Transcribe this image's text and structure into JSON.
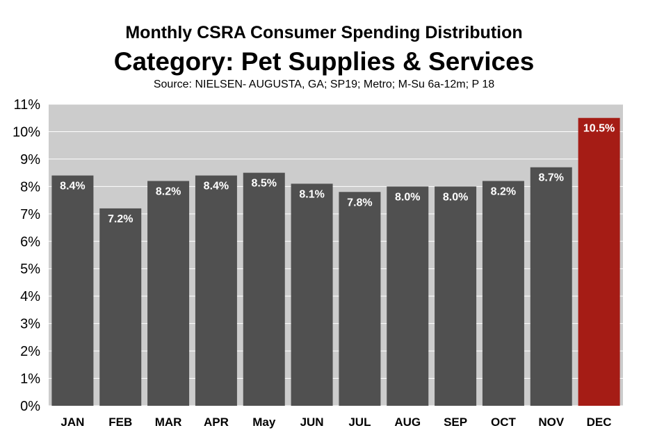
{
  "chart_data": {
    "type": "bar",
    "title": "Monthly CSRA Consumer Spending Distribution",
    "subtitle": "Category: Pet Supplies & Services",
    "source": "Source: NIELSEN-  AUGUSTA, GA; SP19; Metro; M-Su 6a-12m; P 18",
    "categories": [
      "JAN",
      "FEB",
      "MAR",
      "APR",
      "May",
      "JUN",
      "JUL",
      "AUG",
      "SEP",
      "OCT",
      "NOV",
      "DEC"
    ],
    "values": [
      8.4,
      7.2,
      8.2,
      8.4,
      8.5,
      8.1,
      7.8,
      8.0,
      8.0,
      8.2,
      8.7,
      10.5
    ],
    "data_labels": [
      "8.4%",
      "7.2%",
      "8.2%",
      "8.4%",
      "8.5%",
      "8.1%",
      "7.8%",
      "8.0%",
      "8.0%",
      "8.2%",
      "8.7%",
      "10.5%"
    ],
    "yticks": [
      "0%",
      "1%",
      "2%",
      "3%",
      "4%",
      "5%",
      "6%",
      "7%",
      "8%",
      "9%",
      "10%",
      "11%"
    ],
    "ylim": [
      0,
      11
    ],
    "grid": "horizontal",
    "legend": "none",
    "colors": {
      "bar": "#505050",
      "highlight": "#a51c15",
      "plot_background": "#cccccc",
      "grid": "#ffffff",
      "data_label": "#ffffff"
    },
    "highlight_category": "DEC"
  }
}
